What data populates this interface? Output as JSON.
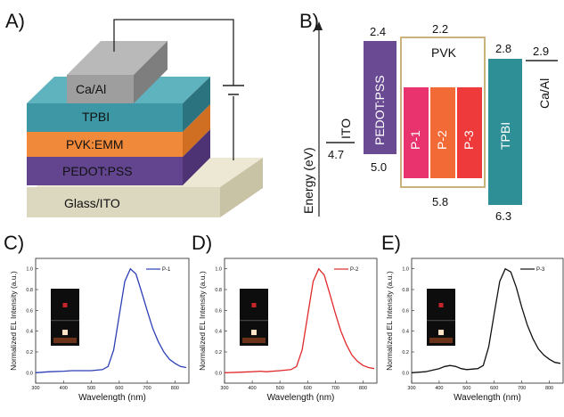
{
  "panels": {
    "a": "A)",
    "b": "B)",
    "c": "C)",
    "d": "D)",
    "e": "E)"
  },
  "device": {
    "layers": {
      "cathode": "Ca/Al",
      "tpbi": "TPBI",
      "pvk": "PVK:EMM",
      "pedot": "PEDOT:PSS",
      "substrate": "Glass/ITO"
    },
    "colors": {
      "cathode": "#9e9e9e",
      "tpbi": "#3e97a5",
      "pvk": "#f08a3a",
      "pedot": "#62458e",
      "substrate": "#dcd7bf"
    }
  },
  "energy_diagram": {
    "y_label": "Energy (eV)",
    "labels": {
      "ito": "ITO",
      "pedot": "PEDOT:PSS",
      "pvk": "PVK",
      "p1": "P-1",
      "p2": "P-2",
      "p3": "P-3",
      "tpbi": "TPBI",
      "caal": "Ca/Al"
    },
    "levels": {
      "ito": "4.7",
      "pedot_top": "2.4",
      "pedot_bottom": "5.0",
      "pvk_top": "2.2",
      "pvk_bottom": "5.8",
      "tpbi_top": "2.8",
      "tpbi_bottom": "6.3",
      "caal": "2.9"
    },
    "colors": {
      "pedot": "#6a4a93",
      "p1": "#e8336e",
      "p2": "#f26a36",
      "p3": "#ee3a3a",
      "tpbi": "#2f8f96",
      "pvk_border": "#c9b27c"
    }
  },
  "chart_data": [
    {
      "type": "line",
      "xlabel": "Wavelength (nm)",
      "ylabel": "Normalized EL Intensity (a.u.)",
      "xlim": [
        300,
        850
      ],
      "ylim": [
        -0.1,
        1.1
      ],
      "xticks": [
        "300",
        "400",
        "500",
        "600",
        "700",
        "800"
      ],
      "yticks": [
        "0.0",
        "0.2",
        "0.4",
        "0.6",
        "0.8",
        "1.0"
      ],
      "series": [
        {
          "name": "P-1",
          "color": "#2b3fb5",
          "x": [
            300,
            350,
            400,
            430,
            450,
            500,
            540,
            560,
            580,
            600,
            620,
            640,
            660,
            680,
            700,
            720,
            740,
            760,
            780,
            800,
            820,
            840
          ],
          "y": [
            0.0,
            0.01,
            0.015,
            0.02,
            0.02,
            0.02,
            0.03,
            0.06,
            0.22,
            0.55,
            0.88,
            1.0,
            0.95,
            0.78,
            0.6,
            0.43,
            0.3,
            0.2,
            0.13,
            0.09,
            0.06,
            0.05
          ]
        }
      ]
    },
    {
      "type": "line",
      "xlabel": "Wavelength (nm)",
      "ylabel": "Normalized EL Intensity (a.u.)",
      "xlim": [
        300,
        850
      ],
      "ylim": [
        -0.1,
        1.1
      ],
      "xticks": [
        "300",
        "400",
        "500",
        "600",
        "700",
        "800"
      ],
      "yticks": [
        "0.0",
        "0.2",
        "0.4",
        "0.6",
        "0.8",
        "1.0"
      ],
      "series": [
        {
          "name": "P-2",
          "color": "#e0282a",
          "x": [
            300,
            350,
            400,
            430,
            450,
            500,
            540,
            560,
            580,
            600,
            620,
            640,
            660,
            680,
            700,
            720,
            740,
            760,
            780,
            800,
            820,
            840
          ],
          "y": [
            0.0,
            0.005,
            0.01,
            0.015,
            0.01,
            0.02,
            0.03,
            0.06,
            0.22,
            0.55,
            0.88,
            1.0,
            0.94,
            0.76,
            0.57,
            0.4,
            0.27,
            0.17,
            0.11,
            0.07,
            0.05,
            0.04
          ]
        }
      ]
    },
    {
      "type": "line",
      "xlabel": "Wavelength (nm)",
      "ylabel": "Normalized EL Intensity (a.u.)",
      "xlim": [
        300,
        850
      ],
      "ylim": [
        -0.1,
        1.1
      ],
      "xticks": [
        "300",
        "400",
        "500",
        "600",
        "700",
        "800"
      ],
      "yticks": [
        "0.0",
        "0.2",
        "0.4",
        "0.6",
        "0.8",
        "1.0"
      ],
      "series": [
        {
          "name": "P-3",
          "color": "#111111",
          "x": [
            300,
            350,
            400,
            420,
            440,
            460,
            480,
            500,
            540,
            560,
            580,
            600,
            620,
            640,
            660,
            680,
            700,
            720,
            740,
            760,
            780,
            800,
            820,
            840
          ],
          "y": [
            0.0,
            0.01,
            0.04,
            0.06,
            0.07,
            0.06,
            0.04,
            0.03,
            0.04,
            0.07,
            0.25,
            0.57,
            0.88,
            1.0,
            0.97,
            0.82,
            0.63,
            0.46,
            0.33,
            0.23,
            0.17,
            0.13,
            0.1,
            0.09
          ]
        }
      ]
    }
  ]
}
